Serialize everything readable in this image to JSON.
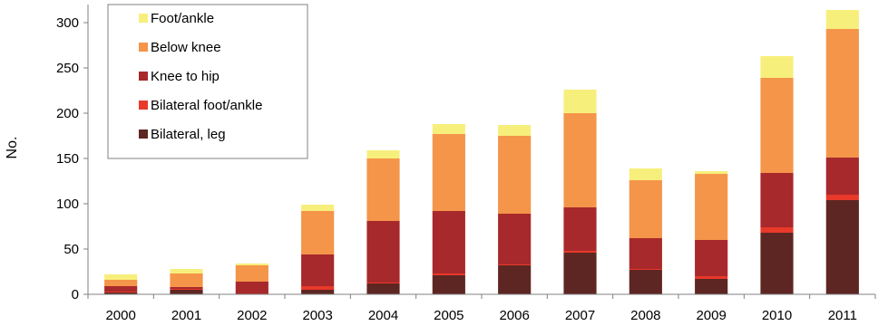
{
  "chart_data": {
    "type": "bar",
    "stacked": true,
    "categories": [
      "2000",
      "2001",
      "2002",
      "2003",
      "2004",
      "2005",
      "2006",
      "2007",
      "2008",
      "2009",
      "2010",
      "2011"
    ],
    "series": [
      {
        "name": "Bilateral, leg",
        "color": "#5e2622",
        "values": [
          2,
          5,
          0,
          5,
          12,
          21,
          32,
          46,
          27,
          17,
          68,
          104
        ]
      },
      {
        "name": "Bilateral foot/ankle",
        "color": "#e8392a",
        "values": [
          1,
          1,
          0,
          4,
          1,
          2,
          1,
          2,
          1,
          3,
          6,
          6
        ]
      },
      {
        "name": "Knee to hip",
        "color": "#a8292b",
        "values": [
          6,
          2,
          14,
          35,
          68,
          69,
          56,
          48,
          34,
          40,
          60,
          41
        ]
      },
      {
        "name": "Below knee",
        "color": "#f4954a",
        "values": [
          7,
          15,
          18,
          48,
          69,
          85,
          86,
          104,
          64,
          73,
          105,
          142
        ]
      },
      {
        "name": "Foot/ankle",
        "color": "#f7ef7c",
        "values": [
          6,
          5,
          2,
          7,
          9,
          11,
          12,
          26,
          13,
          3,
          24,
          21
        ]
      }
    ],
    "legend_order": [
      "Foot/ankle",
      "Below knee",
      "Knee to hip",
      "Bilateral foot/ankle",
      "Bilateral, leg"
    ],
    "ylabel": "No.",
    "xlabel": "",
    "ylim": [
      0,
      320
    ],
    "yticks": [
      0,
      50,
      100,
      150,
      200,
      250,
      300
    ],
    "grid": false,
    "legend_position": "top-left"
  }
}
